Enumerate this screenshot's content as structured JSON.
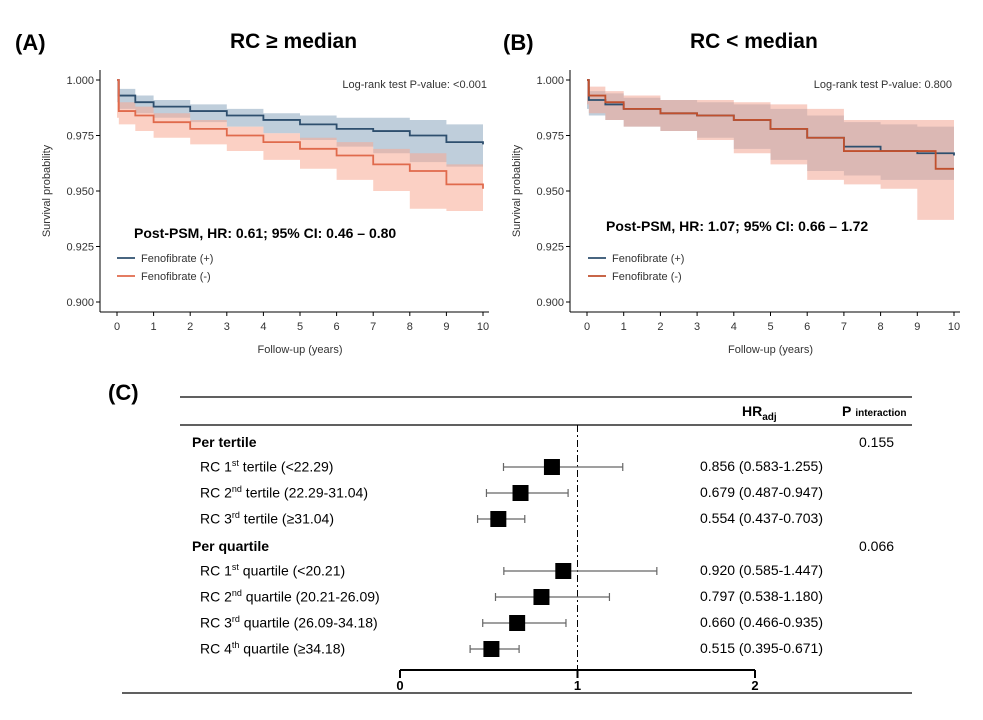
{
  "panels": {
    "A": {
      "label": "(A)",
      "title": "RC ≥ median"
    },
    "B": {
      "label": "(B)",
      "title": "RC < median"
    },
    "C": {
      "label": "(C)"
    }
  },
  "chart_data": [
    {
      "type": "line",
      "panel": "A",
      "title": "RC ≥ median",
      "xlabel": "Follow-up (years)",
      "ylabel": "Survival probability",
      "xlim": [
        0,
        10
      ],
      "ylim": [
        0.9,
        1.0
      ],
      "xticks": [
        "0",
        "1",
        "2",
        "3",
        "4",
        "5",
        "6",
        "7",
        "8",
        "9",
        "10"
      ],
      "yticks": [
        "0.900",
        "0.925",
        "0.950",
        "0.975",
        "1.000"
      ],
      "annotation": "Log-rank test P-value: <0.001",
      "stat_text": "Post-PSM, HR: 0.61; 95% CI: 0.46 – 0.80",
      "legend": [
        "Fenofibrate (+)",
        "Fenofibrate (-)"
      ],
      "series": [
        {
          "name": "Fenofibrate (+)",
          "color": "#2e4f6e",
          "band_color": "#8aa5bd",
          "x": [
            0,
            0.05,
            0.5,
            1,
            2,
            3,
            4,
            5,
            6,
            7,
            8,
            9,
            10
          ],
          "y": [
            1.0,
            0.993,
            0.99,
            0.988,
            0.986,
            0.984,
            0.982,
            0.98,
            0.978,
            0.977,
            0.975,
            0.972,
            0.971
          ],
          "lower": [
            1.0,
            0.99,
            0.987,
            0.985,
            0.983,
            0.981,
            0.979,
            0.976,
            0.973,
            0.97,
            0.967,
            0.963,
            0.961
          ],
          "upper": [
            1.0,
            0.996,
            0.993,
            0.991,
            0.989,
            0.987,
            0.985,
            0.984,
            0.983,
            0.983,
            0.982,
            0.98,
            0.979
          ]
        },
        {
          "name": "Fenofibrate (-)",
          "color": "#e06a4c",
          "band_color": "#f7a993",
          "x": [
            0,
            0.05,
            0.5,
            1,
            2,
            3,
            4,
            5,
            6,
            7,
            8,
            9,
            10
          ],
          "y": [
            1.0,
            0.986,
            0.984,
            0.981,
            0.978,
            0.975,
            0.972,
            0.969,
            0.966,
            0.962,
            0.959,
            0.953,
            0.951
          ],
          "lower": [
            1.0,
            0.983,
            0.98,
            0.977,
            0.974,
            0.971,
            0.968,
            0.964,
            0.96,
            0.955,
            0.95,
            0.942,
            0.941
          ],
          "upper": [
            1.0,
            0.99,
            0.988,
            0.985,
            0.982,
            0.979,
            0.976,
            0.974,
            0.972,
            0.969,
            0.967,
            0.962,
            0.961
          ]
        }
      ]
    },
    {
      "type": "line",
      "panel": "B",
      "title": "RC < median",
      "xlabel": "Follow-up (years)",
      "ylabel": "Survival probability",
      "xlim": [
        0,
        10
      ],
      "ylim": [
        0.9,
        1.0
      ],
      "xticks": [
        "0",
        "1",
        "2",
        "3",
        "4",
        "5",
        "6",
        "7",
        "8",
        "9",
        "10"
      ],
      "yticks": [
        "0.900",
        "0.925",
        "0.950",
        "0.975",
        "1.000"
      ],
      "annotation": "Log-rank test P-value: 0.800",
      "stat_text": "Post-PSM, HR: 1.07; 95% CI: 0.66 – 1.72",
      "legend": [
        "Fenofibrate (+)",
        "Fenofibrate (-)"
      ],
      "series": [
        {
          "name": "Fenofibrate (+)",
          "color": "#2e4f6e",
          "band_color": "#8aa5bd",
          "x": [
            0,
            0.05,
            0.5,
            1,
            2,
            3,
            4,
            5,
            6,
            7,
            8,
            9,
            10
          ],
          "y": [
            1.0,
            0.991,
            0.989,
            0.987,
            0.985,
            0.984,
            0.982,
            0.978,
            0.974,
            0.97,
            0.968,
            0.967,
            0.966
          ],
          "lower": [
            1.0,
            0.987,
            0.984,
            0.982,
            0.979,
            0.977,
            0.974,
            0.969,
            0.964,
            0.959,
            0.957,
            0.955,
            0.955
          ],
          "upper": [
            1.0,
            0.995,
            0.994,
            0.992,
            0.991,
            0.99,
            0.989,
            0.987,
            0.984,
            0.981,
            0.98,
            0.979,
            0.978
          ]
        },
        {
          "name": "Fenofibrate (-)",
          "color": "#c0502e",
          "band_color": "#f2a694",
          "x": [
            0,
            0.05,
            0.5,
            1,
            2,
            3,
            4,
            5,
            6,
            7,
            8,
            9,
            9.5,
            10
          ],
          "y": [
            1.0,
            0.993,
            0.99,
            0.987,
            0.985,
            0.984,
            0.982,
            0.978,
            0.974,
            0.968,
            0.968,
            0.968,
            0.96,
            0.96
          ],
          "lower": [
            1.0,
            0.989,
            0.985,
            0.982,
            0.979,
            0.977,
            0.973,
            0.967,
            0.962,
            0.955,
            0.953,
            0.951,
            0.937,
            0.937
          ],
          "upper": [
            1.0,
            0.997,
            0.995,
            0.993,
            0.991,
            0.991,
            0.99,
            0.989,
            0.987,
            0.982,
            0.982,
            0.982,
            0.982,
            0.982
          ]
        }
      ]
    },
    {
      "type": "forest",
      "panel": "C",
      "xlim": [
        0,
        2
      ],
      "xticks": [
        "0",
        "1",
        "2"
      ],
      "reference_line": 1,
      "header": {
        "hr_main": "HR",
        "hr_sub": "adj",
        "p_main": "P",
        "p_sub": "interaction"
      },
      "groups": [
        {
          "label": "Per tertile",
          "p_interaction": "0.155",
          "rows": [
            {
              "label_pre": "RC 1",
              "sup": "st",
              "label_post": " tertile (<22.29)",
              "hr": 0.856,
              "lo": 0.583,
              "hi": 1.255,
              "text": "0.856 (0.583-1.255)"
            },
            {
              "label_pre": "RC 2",
              "sup": "nd",
              "label_post": " tertile (22.29-31.04)",
              "hr": 0.679,
              "lo": 0.487,
              "hi": 0.947,
              "text": "0.679 (0.487-0.947)"
            },
            {
              "label_pre": "RC 3",
              "sup": "rd",
              "label_post": "  tertile (≥31.04)",
              "hr": 0.554,
              "lo": 0.437,
              "hi": 0.703,
              "text": "0.554 (0.437-0.703)"
            }
          ]
        },
        {
          "label": "Per quartile",
          "p_interaction": "0.066",
          "rows": [
            {
              "label_pre": "RC 1",
              "sup": "st",
              "label_post": " quartile (<20.21)",
              "hr": 0.92,
              "lo": 0.585,
              "hi": 1.447,
              "text": "0.920 (0.585-1.447)"
            },
            {
              "label_pre": "RC 2",
              "sup": "nd",
              "label_post": " quartile (20.21-26.09)",
              "hr": 0.797,
              "lo": 0.538,
              "hi": 1.18,
              "text": "0.797 (0.538-1.180)"
            },
            {
              "label_pre": "RC 3",
              "sup": "rd",
              "label_post": " quartile (26.09-34.18)",
              "hr": 0.66,
              "lo": 0.466,
              "hi": 0.935,
              "text": "0.660 (0.466-0.935)"
            },
            {
              "label_pre": "RC 4",
              "sup": "th",
              "label_post": " quartile (≥34.18)",
              "hr": 0.515,
              "lo": 0.395,
              "hi": 0.671,
              "text": "0.515 (0.395-0.671)"
            }
          ]
        }
      ]
    }
  ]
}
